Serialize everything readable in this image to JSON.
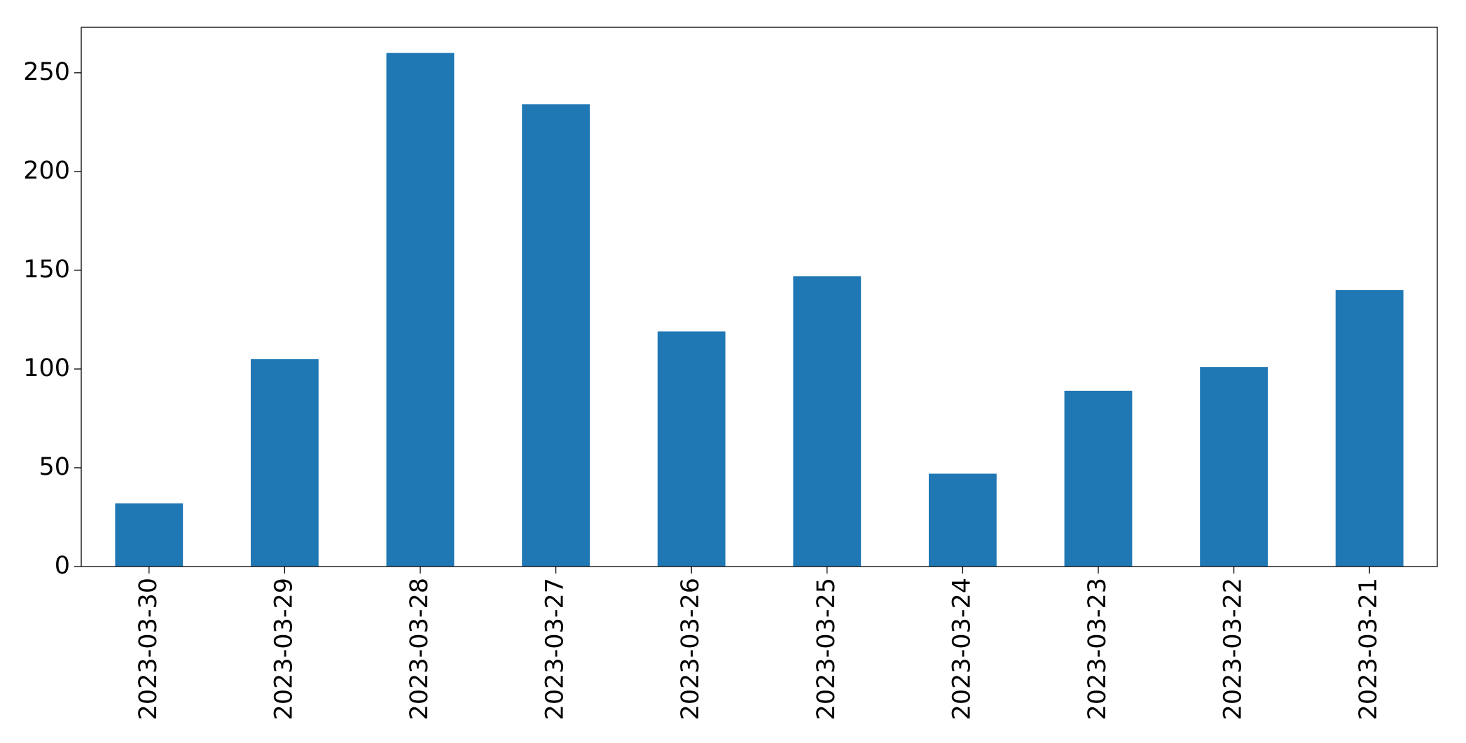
{
  "chart_data": {
    "type": "bar",
    "categories": [
      "2023-03-30",
      "2023-03-29",
      "2023-03-28",
      "2023-03-27",
      "2023-03-26",
      "2023-03-25",
      "2023-03-24",
      "2023-03-23",
      "2023-03-22",
      "2023-03-21"
    ],
    "values": [
      32,
      105,
      260,
      234,
      119,
      147,
      47,
      89,
      101,
      140
    ],
    "color": "#1f77b4",
    "ylim": [
      0,
      273
    ],
    "yticks": [
      0,
      50,
      100,
      150,
      200,
      250
    ],
    "grid": false
  }
}
